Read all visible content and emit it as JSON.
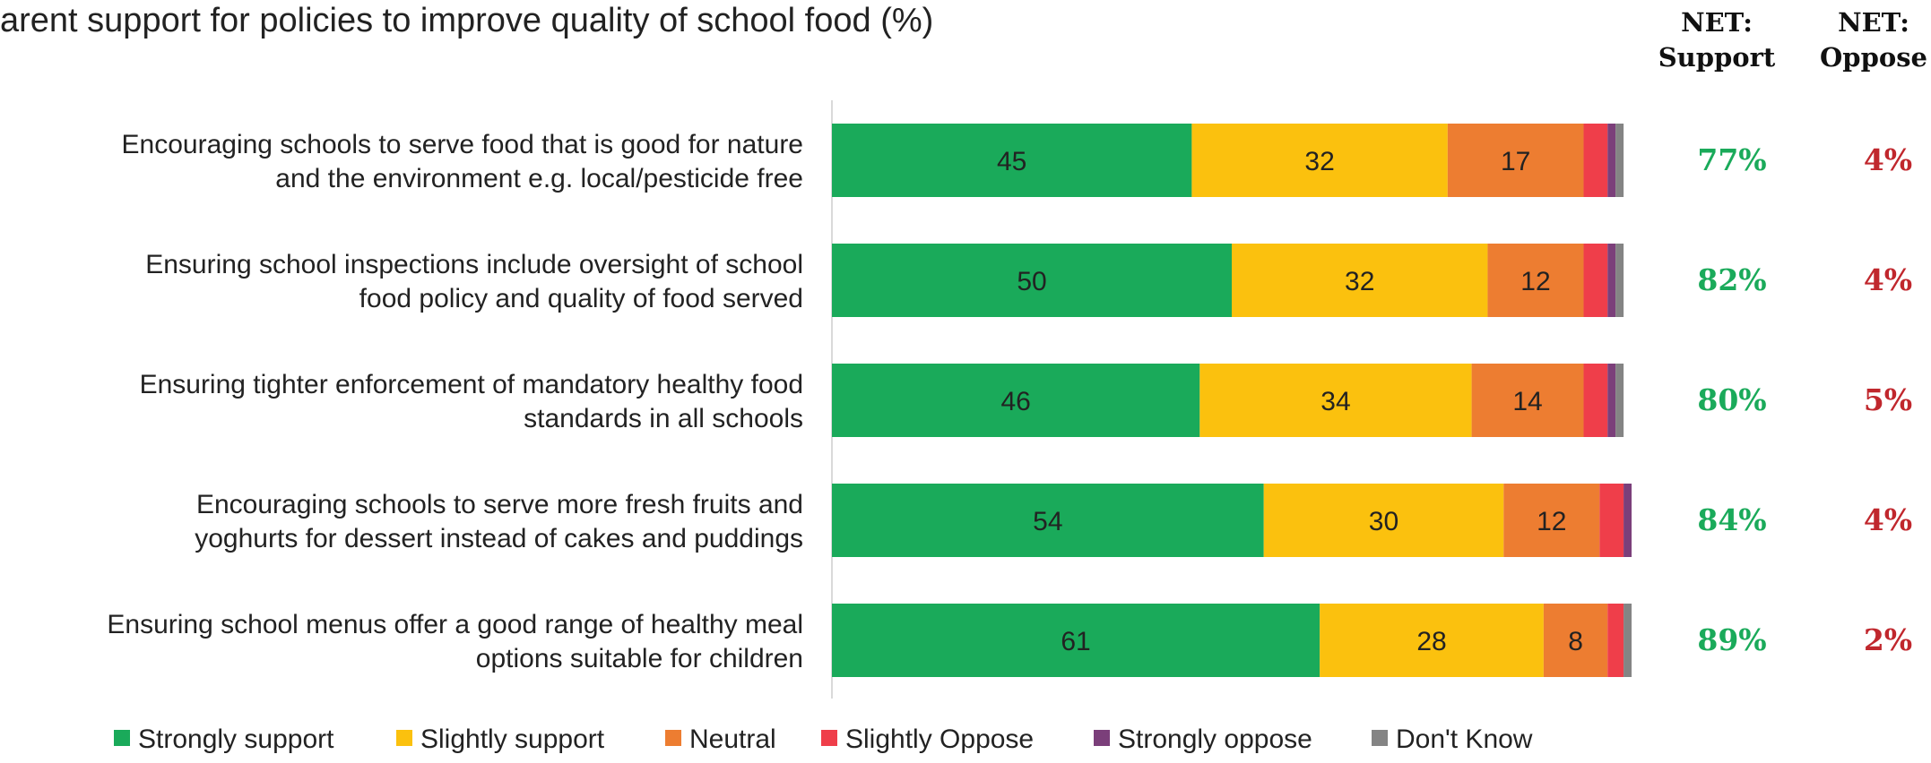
{
  "chart_data": {
    "type": "bar",
    "orientation": "horizontal",
    "stacked": true,
    "title": "arent support for policies to improve quality of school food (%)",
    "net_headers": {
      "support": [
        "NET:",
        "Support"
      ],
      "oppose": [
        "NET:",
        "Oppose"
      ]
    },
    "categories": [
      [
        "Encouraging schools to serve food that is good for nature",
        "and the environment e.g. local/pesticide free"
      ],
      [
        "Ensuring school inspections include oversight of school",
        "food policy and quality of food served"
      ],
      [
        "Ensuring tighter enforcement of mandatory healthy food",
        "standards in all schools"
      ],
      [
        "Encouraging schools to serve more fresh fruits and",
        "yoghurts for dessert instead of cakes and puddings"
      ],
      [
        "Ensuring school menus offer a good range of healthy meal",
        "options suitable for children"
      ]
    ],
    "series": [
      {
        "name": "Strongly support",
        "color": "#1aaa5a",
        "values": [
          45,
          50,
          46,
          54,
          61
        ],
        "labels": [
          "45",
          "50",
          "46",
          "54",
          "61"
        ]
      },
      {
        "name": "Slightly support",
        "color": "#fbc10e",
        "values": [
          32,
          32,
          34,
          30,
          28
        ],
        "labels": [
          "32",
          "32",
          "34",
          "30",
          "28"
        ]
      },
      {
        "name": "Neutral",
        "color": "#ed7d31",
        "values": [
          17,
          12,
          14,
          12,
          8
        ],
        "labels": [
          "17",
          "12",
          "14",
          "12",
          "8"
        ]
      },
      {
        "name": "Slightly Oppose",
        "color": "#ef3e4a",
        "values": [
          3,
          3,
          3,
          3,
          2
        ],
        "labels": [
          "",
          "",
          "",
          "",
          ""
        ]
      },
      {
        "name": "Strongly oppose",
        "color": "#7b3f7a",
        "values": [
          1,
          1,
          1,
          1,
          0
        ],
        "labels": [
          "",
          "",
          "",
          "",
          ""
        ]
      },
      {
        "name": "Don't Know",
        "color": "#848484",
        "values": [
          1,
          1,
          1,
          0,
          1
        ],
        "labels": [
          "",
          "",
          "",
          "",
          ""
        ]
      }
    ],
    "net_support": [
      "77%",
      "82%",
      "80%",
      "84%",
      "89%"
    ],
    "net_oppose": [
      "4%",
      "4%",
      "5%",
      "4%",
      "2%"
    ],
    "net_support_color": "#1aaa5a",
    "net_oppose_color": "#c0272d",
    "xlim": [
      0,
      100
    ],
    "grid": false,
    "legend_position": "bottom"
  }
}
